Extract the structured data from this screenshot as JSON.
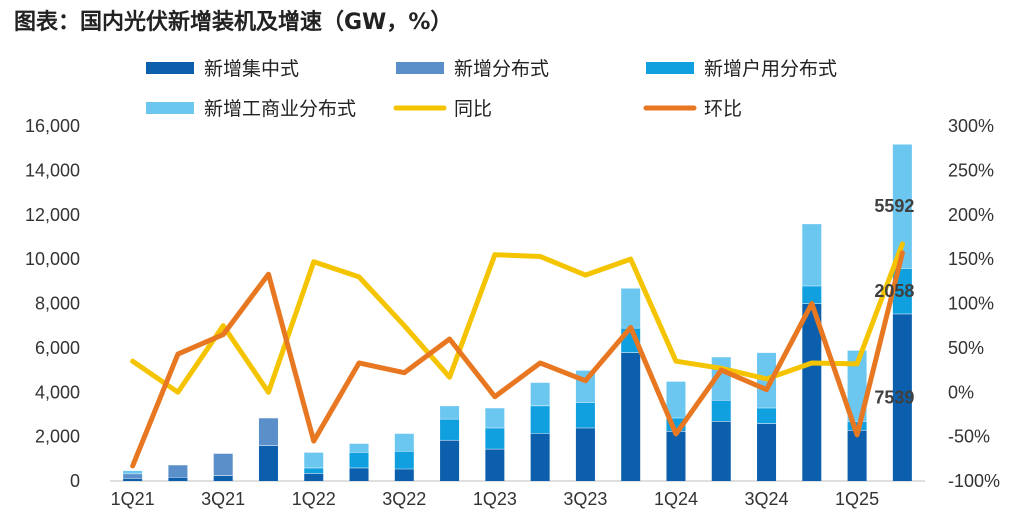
{
  "title": "图表：国内光伏新增装机及增速（GW，%）",
  "chart_data": {
    "type": "bar",
    "stacked": true,
    "categories": [
      "1Q21",
      "2Q21",
      "3Q21",
      "4Q21",
      "1Q22",
      "2Q22",
      "3Q22",
      "4Q22",
      "1Q23",
      "2Q23",
      "3Q23",
      "4Q23",
      "1Q24",
      "2Q24",
      "3Q24",
      "4Q24",
      "1Q25",
      "2Q25"
    ],
    "x_tick_labels": [
      "1Q21",
      "3Q21",
      "1Q22",
      "3Q22",
      "1Q23",
      "3Q23",
      "1Q24",
      "3Q24",
      "1Q25"
    ],
    "series": [
      {
        "name": "新增集中式",
        "axis": "left",
        "color": "#0b5fad",
        "values": [
          130,
          180,
          250,
          1600,
          350,
          600,
          550,
          1850,
          1450,
          2150,
          2400,
          5800,
          2250,
          2700,
          2600,
          8000,
          2300,
          7539
        ]
      },
      {
        "name": "新增分布式",
        "axis": "left",
        "color": "#5b8fc9",
        "values": [
          200,
          550,
          1000,
          1250,
          0,
          0,
          0,
          0,
          0,
          0,
          0,
          0,
          0,
          0,
          0,
          0,
          0,
          0
        ]
      },
      {
        "name": "新增户用分布式",
        "axis": "left",
        "color": "#10a0e0",
        "values": [
          0,
          0,
          0,
          0,
          250,
          700,
          800,
          950,
          950,
          1250,
          1150,
          1100,
          600,
          950,
          700,
          800,
          400,
          2058
        ]
      },
      {
        "name": "新增工商业分布式",
        "axis": "left",
        "color": "#6bc6f0",
        "values": [
          150,
          0,
          0,
          0,
          700,
          400,
          800,
          600,
          900,
          1050,
          1450,
          1800,
          1650,
          1950,
          2500,
          2800,
          3200,
          5592
        ]
      },
      {
        "name": "同比",
        "axis": "right",
        "type": "line",
        "color": "#f5c400",
        "values": [
          35,
          0,
          75,
          0,
          147,
          130,
          75,
          17,
          155,
          153,
          132,
          150,
          35,
          27,
          15,
          33,
          32,
          167
        ]
      },
      {
        "name": "环比",
        "axis": "right",
        "type": "line",
        "color": "#e87722",
        "values": [
          -83,
          43,
          65,
          133,
          -55,
          33,
          22,
          60,
          -5,
          33,
          13,
          73,
          -47,
          25,
          3,
          100,
          -48,
          157
        ]
      }
    ],
    "data_labels": [
      {
        "series": "新增工商业分布式",
        "category": "2Q25",
        "text": "5592"
      },
      {
        "series": "新增户用分布式",
        "category": "2Q25",
        "text": "2058"
      },
      {
        "series": "新增集中式",
        "category": "2Q25",
        "text": "7539"
      }
    ],
    "y_left": {
      "min": 0,
      "max": 16000,
      "ticks": [
        "0",
        "2,000",
        "4,000",
        "6,000",
        "8,000",
        "10,000",
        "12,000",
        "14,000",
        "16,000"
      ]
    },
    "y_right": {
      "min": -100,
      "max": 300,
      "ticks": [
        "-100%",
        "-50%",
        "0%",
        "50%",
        "100%",
        "150%",
        "200%",
        "250%",
        "300%"
      ]
    },
    "legend_position": "top"
  }
}
